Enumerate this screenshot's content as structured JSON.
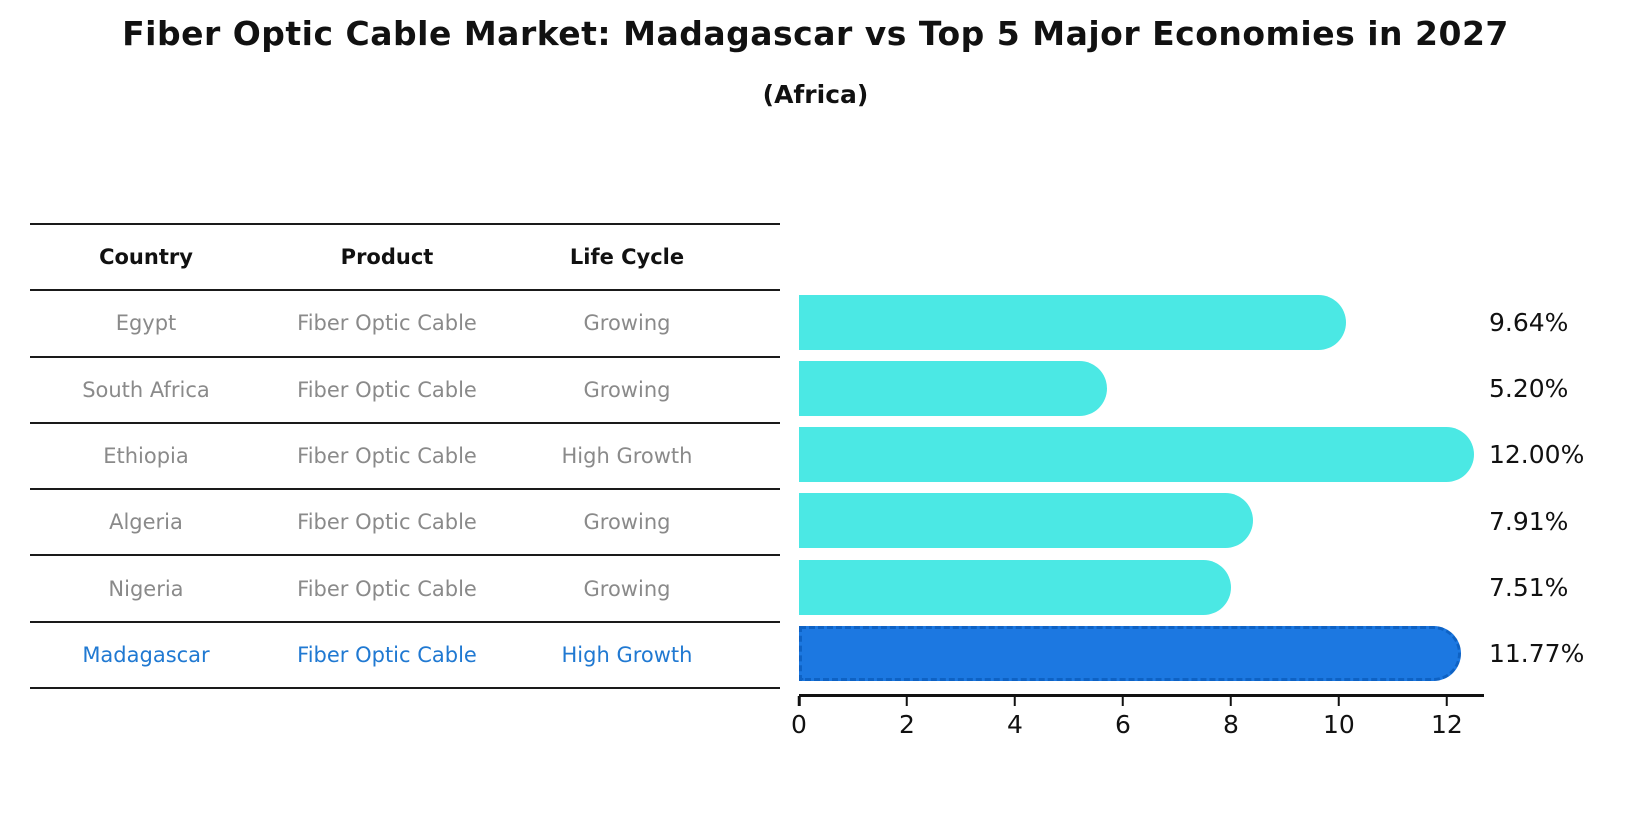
{
  "title": "Fiber Optic Cable Market: Madagascar vs Top 5 Major Economies in 2027",
  "subtitle": "(Africa)",
  "colors": {
    "bar": "#4BE8E4",
    "highlight_bar": "#1C78E1",
    "highlight_bar_border": "#0E62C4",
    "highlight_text": "#2079D2",
    "table_text": "#8a8a8a",
    "axis_text": "#111111"
  },
  "table": {
    "headers": [
      "Country",
      "Product",
      "Life Cycle"
    ],
    "rows": [
      {
        "country": "Egypt",
        "product": "Fiber Optic Cable",
        "life_cycle": "Growing",
        "highlight": false
      },
      {
        "country": "South Africa",
        "product": "Fiber Optic Cable",
        "life_cycle": "Growing",
        "highlight": false
      },
      {
        "country": "Ethiopia",
        "product": "Fiber Optic Cable",
        "life_cycle": "High Growth",
        "highlight": false
      },
      {
        "country": "Algeria",
        "product": "Fiber Optic Cable",
        "life_cycle": "Growing",
        "highlight": false
      },
      {
        "country": "Nigeria",
        "product": "Fiber Optic Cable",
        "life_cycle": "Growing",
        "highlight": false
      },
      {
        "country": "Madagascar",
        "product": "Fiber Optic Cable",
        "life_cycle": "High Growth",
        "highlight": true
      }
    ]
  },
  "chart_data": {
    "type": "bar",
    "orientation": "horizontal",
    "title": "Fiber Optic Cable Market: Madagascar vs Top 5 Major Economies in 2027 (Africa)",
    "categories": [
      "Egypt",
      "South Africa",
      "Ethiopia",
      "Algeria",
      "Nigeria",
      "Madagascar"
    ],
    "values": [
      9.64,
      5.2,
      12.0,
      7.91,
      7.51,
      11.77
    ],
    "value_labels": [
      "9.64%",
      "5.20%",
      "12.00%",
      "7.91%",
      "7.51%",
      "11.77%"
    ],
    "highlight_index": 5,
    "x_ticks": [
      0,
      2,
      4,
      6,
      8,
      10,
      12
    ],
    "xlim": [
      0,
      12.65
    ],
    "cap_units": 0.5,
    "grid": false,
    "legend": false,
    "xlabel": "",
    "ylabel": ""
  }
}
